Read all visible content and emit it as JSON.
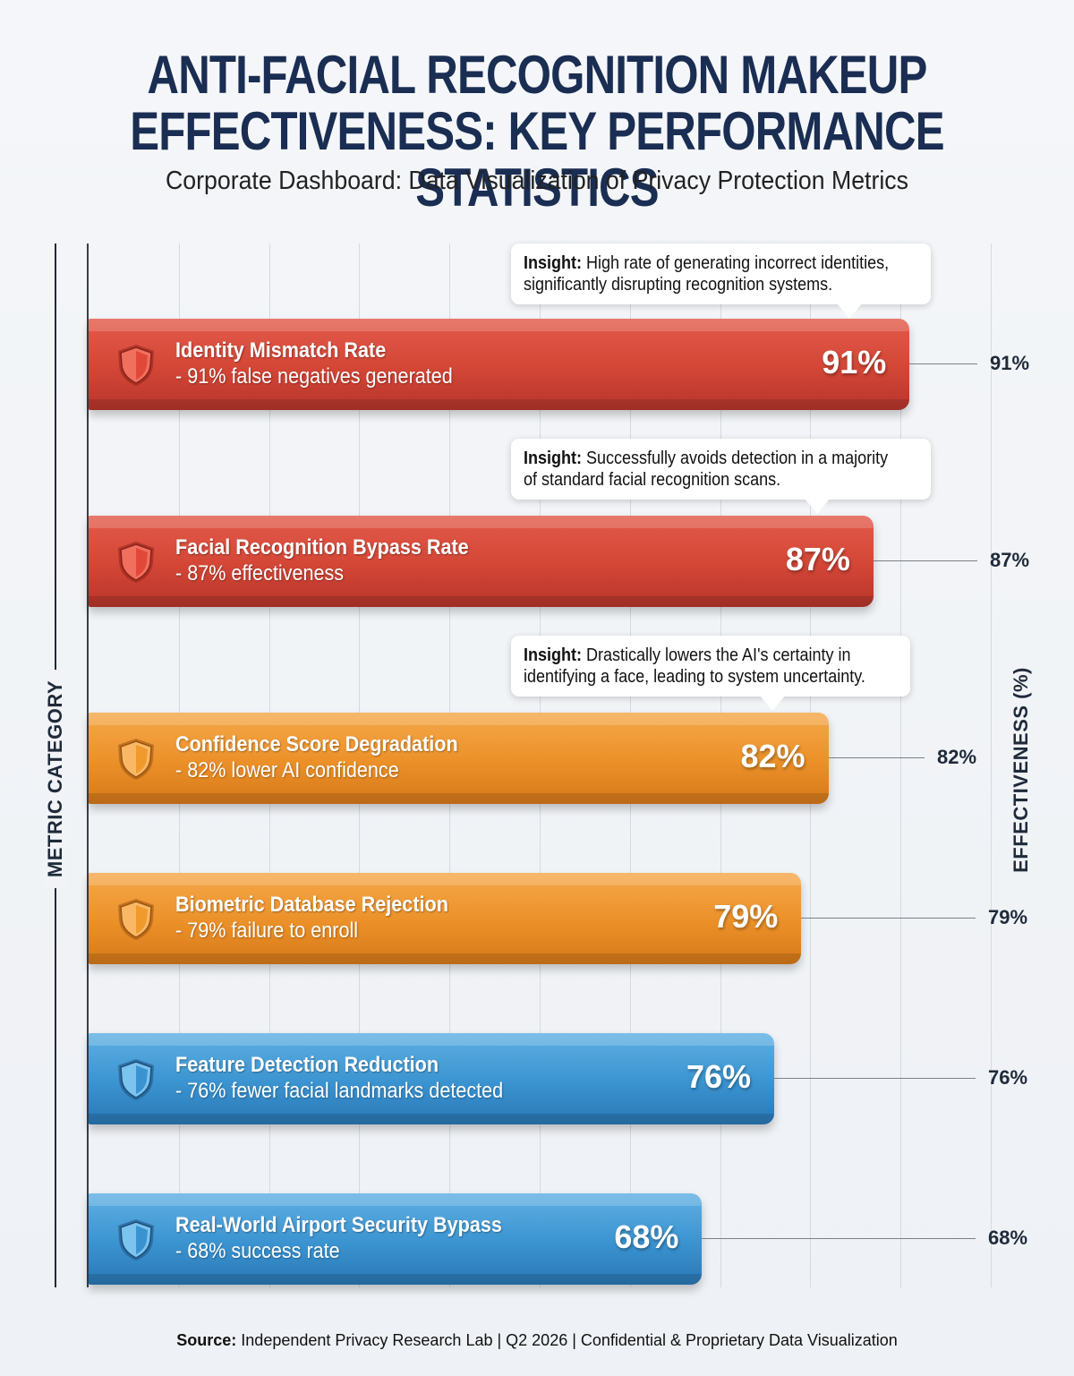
{
  "title_line1": "ANTI-FACIAL RECOGNITION MAKEUP",
  "title_line2": "EFFECTIVENESS: KEY PERFORMANCE STATISTICS",
  "subtitle": "Corporate Dashboard: Data Visualization of Privacy Protection Metrics",
  "source": {
    "label": "Source:",
    "text": "Independent Privacy Research Lab | Q2 2026 | Confidential & Proprietary Data Visualization"
  },
  "colors": {
    "red": "#d34636",
    "orange": "#eb9028",
    "blue": "#3a93d0"
  },
  "chart_data": {
    "type": "bar",
    "orientation": "horizontal",
    "xlabel": "EFFECTIVENESS (%)",
    "ylabel": "METRIC CATEGORY",
    "xlim": [
      0,
      100
    ],
    "grid": true,
    "categories": [
      "Identity Mismatch Rate",
      "Facial Recognition Bypass Rate",
      "Confidence Score Degradation",
      "Biometric Database Rejection",
      "Feature Detection Reduction",
      "Real-World Airport Security Bypass"
    ],
    "descriptions": [
      "- 91% false negatives generated",
      "- 87% effectiveness",
      "- 82% lower AI confidence",
      "- 79% failure to enroll",
      "- 76% fewer facial landmarks detected",
      "- 68% success rate"
    ],
    "values": [
      91,
      87,
      82,
      79,
      76,
      68
    ],
    "value_labels": [
      "91%",
      "87%",
      "82%",
      "79%",
      "76%",
      "68%"
    ],
    "bar_colors": [
      "red",
      "red",
      "orange",
      "orange",
      "blue",
      "blue"
    ],
    "icon": "shield-icon",
    "annotations": [
      {
        "bar": 0,
        "label": "Insight:",
        "lines": [
          " High rate of generating incorrect identities,",
          "significantly disrupting recognition systems."
        ]
      },
      {
        "bar": 1,
        "label": "Insight:",
        "lines": [
          " Successfully avoids detection in a majority",
          "of standard facial recognition scans."
        ]
      },
      {
        "bar": 2,
        "label": "Insight:",
        "lines": [
          " Drastically lowers the AI's certainty in",
          "identifying a face, leading to system uncertainty."
        ]
      }
    ]
  }
}
